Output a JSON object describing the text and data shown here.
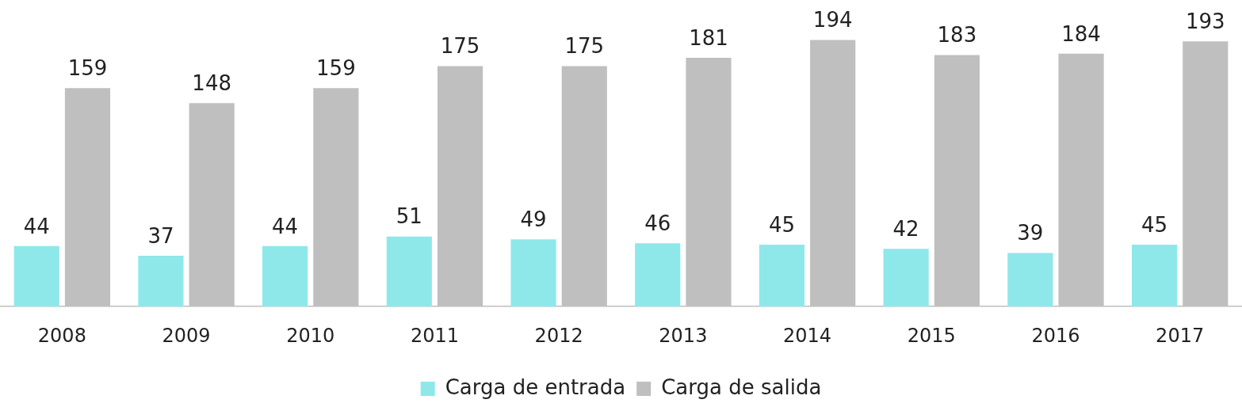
{
  "chart_data": {
    "type": "bar",
    "categories": [
      "2008",
      "2009",
      "2010",
      "2011",
      "2012",
      "2013",
      "2014",
      "2015",
      "2016",
      "2017"
    ],
    "series": [
      {
        "name": "Carga de entrada",
        "color": "#8ee8ea",
        "values": [
          44,
          37,
          44,
          51,
          49,
          46,
          45,
          42,
          39,
          45
        ]
      },
      {
        "name": "Carga de salida",
        "color": "#bfbfbf",
        "values": [
          159,
          148,
          159,
          175,
          175,
          181,
          194,
          183,
          184,
          193
        ]
      }
    ],
    "data_labels": true,
    "legend": "bottom",
    "grid": false
  }
}
